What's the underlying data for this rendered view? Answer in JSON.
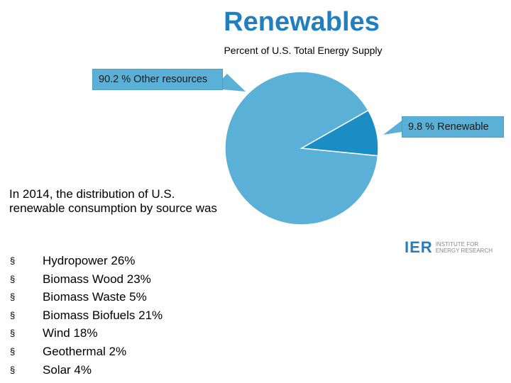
{
  "header": {
    "title": "Renewables",
    "subtitle": "Percent of U.S. Total Energy Supply"
  },
  "chart_data": {
    "type": "pie",
    "title": "Renewables",
    "subtitle": "Percent of U.S. Total Energy Supply",
    "slices": [
      {
        "label": "Other resources",
        "value": 90.2,
        "display": "90.2 % Other resources",
        "color": "#5ab0d6"
      },
      {
        "label": "Renewable",
        "value": 9.8,
        "display": "9.8 % Renewable",
        "color": "#1a8ec4"
      }
    ]
  },
  "description": "In 2014, the distribution of U.S. renewable consumption by source was",
  "bullet_glyph": "§",
  "sources": [
    "Hydropower 26%",
    "Biomass Wood 23%",
    "Biomass Waste 5%",
    "Biomass Biofuels 21%",
    "Wind 18%",
    "Geothermal 2%",
    "Solar 4%"
  ],
  "logo": {
    "mark": "IER",
    "line1": "INSTITUTE FOR",
    "line2": "ENERGY RESEARCH",
    "color": "#2b7bbf"
  }
}
